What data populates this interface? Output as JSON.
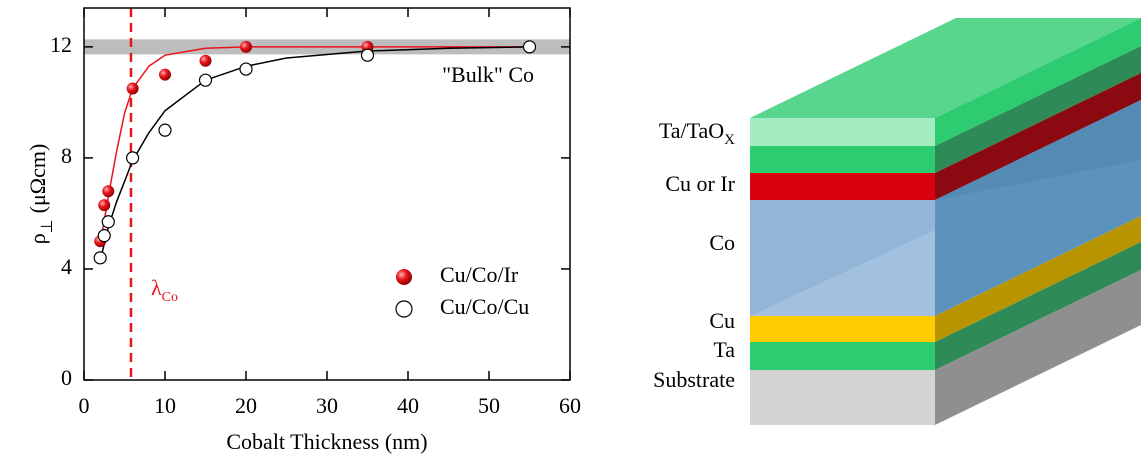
{
  "chart_data": {
    "type": "scatter",
    "x_label": "Cobalt Thickness (nm)",
    "y_label": {
      "text": "ρ",
      "sub": "⊥",
      "rest": "(μΩcm)"
    },
    "xlim": [
      0,
      60
    ],
    "ylim": [
      0,
      13.4
    ],
    "xticks": [
      0,
      10,
      20,
      30,
      40,
      50,
      60
    ],
    "yticks": [
      0,
      4,
      8,
      12
    ],
    "legend": "lower right",
    "series": [
      {
        "name": "Cu/Co/Ir",
        "color": "#e8141c",
        "marker": "filled",
        "x": [
          2,
          2.5,
          3,
          6,
          10,
          15,
          20,
          35
        ],
        "values": [
          5.0,
          6.3,
          6.8,
          10.5,
          11.0,
          11.5,
          12.0,
          12.0
        ]
      },
      {
        "name": "Cu/Co/Cu",
        "color": "#000000",
        "marker": "open",
        "x": [
          2,
          2.5,
          3,
          6,
          10,
          15,
          20,
          35,
          55
        ],
        "values": [
          4.4,
          5.2,
          5.7,
          8.0,
          9.0,
          10.8,
          11.2,
          11.7,
          12.0
        ]
      }
    ],
    "fits": [
      {
        "color": "#e8141c",
        "x": [
          2,
          3,
          4,
          5,
          6,
          8,
          10,
          15,
          20,
          30,
          40,
          55
        ],
        "values": [
          4.9,
          6.6,
          8.2,
          9.6,
          10.5,
          11.3,
          11.7,
          11.95,
          12,
          12,
          12,
          12
        ]
      },
      {
        "color": "#000000",
        "x": [
          2,
          3,
          4,
          6,
          8,
          10,
          15,
          20,
          25,
          35,
          45,
          55
        ],
        "values": [
          4.3,
          5.5,
          6.4,
          7.9,
          8.9,
          9.7,
          10.8,
          11.3,
          11.6,
          11.85,
          11.95,
          12
        ]
      }
    ],
    "reference_line": {
      "value": 12,
      "label": "\"Bulk\" Co",
      "color": "#bdbdbd"
    },
    "vline": {
      "value": 5.8,
      "color": "#e8141c",
      "text": "λ",
      "sub": "Co"
    }
  },
  "diagram": {
    "layers": [
      {
        "label": "Ta/TaO",
        "sub": "X"
      },
      {
        "label": "Cu or Ir"
      },
      {
        "label": "Co"
      },
      {
        "label": "Cu"
      },
      {
        "label": "Ta"
      },
      {
        "label": "Substrate"
      }
    ]
  }
}
